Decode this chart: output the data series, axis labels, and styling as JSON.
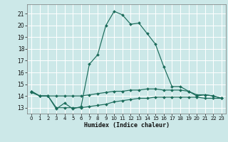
{
  "xlabel": "Humidex (Indice chaleur)",
  "bg_color": "#cce8e8",
  "grid_color": "#ffffff",
  "line_color": "#1a6b5a",
  "xlim": [
    -0.5,
    23.5
  ],
  "ylim": [
    12.5,
    21.8
  ],
  "yticks": [
    13,
    14,
    15,
    16,
    17,
    18,
    19,
    20,
    21
  ],
  "xticks": [
    0,
    1,
    2,
    3,
    4,
    5,
    6,
    7,
    8,
    9,
    10,
    11,
    12,
    13,
    14,
    15,
    16,
    17,
    18,
    19,
    20,
    21,
    22,
    23
  ],
  "line1_x": [
    0,
    1,
    2,
    3,
    4,
    5,
    6,
    7,
    8,
    9,
    10,
    11,
    12,
    13,
    14,
    15,
    16,
    17,
    18,
    19,
    20,
    21,
    22,
    23
  ],
  "line1_y": [
    14.4,
    14.0,
    14.0,
    12.9,
    13.4,
    12.9,
    13.1,
    16.7,
    17.5,
    20.0,
    21.2,
    20.9,
    20.1,
    20.2,
    19.3,
    18.4,
    16.5,
    14.8,
    14.8,
    14.4,
    14.0,
    14.1,
    14.0,
    13.8
  ],
  "line2_x": [
    0,
    1,
    2,
    3,
    4,
    5,
    6,
    7,
    8,
    9,
    10,
    11,
    12,
    13,
    14,
    15,
    16,
    17,
    18,
    19,
    20,
    21,
    22,
    23
  ],
  "line2_y": [
    14.4,
    14.0,
    14.0,
    14.0,
    14.0,
    14.0,
    14.0,
    14.1,
    14.2,
    14.3,
    14.4,
    14.4,
    14.5,
    14.5,
    14.6,
    14.6,
    14.5,
    14.5,
    14.5,
    14.4,
    14.1,
    14.1,
    14.0,
    13.8
  ],
  "line3_x": [
    0,
    1,
    2,
    3,
    4,
    5,
    6,
    7,
    8,
    9,
    10,
    11,
    12,
    13,
    14,
    15,
    16,
    17,
    18,
    19,
    20,
    21,
    22,
    23
  ],
  "line3_y": [
    14.3,
    14.0,
    14.0,
    13.0,
    13.0,
    13.0,
    13.0,
    13.1,
    13.2,
    13.3,
    13.5,
    13.6,
    13.7,
    13.8,
    13.8,
    13.9,
    13.9,
    13.9,
    13.9,
    13.9,
    13.9,
    13.8,
    13.8,
    13.8
  ]
}
